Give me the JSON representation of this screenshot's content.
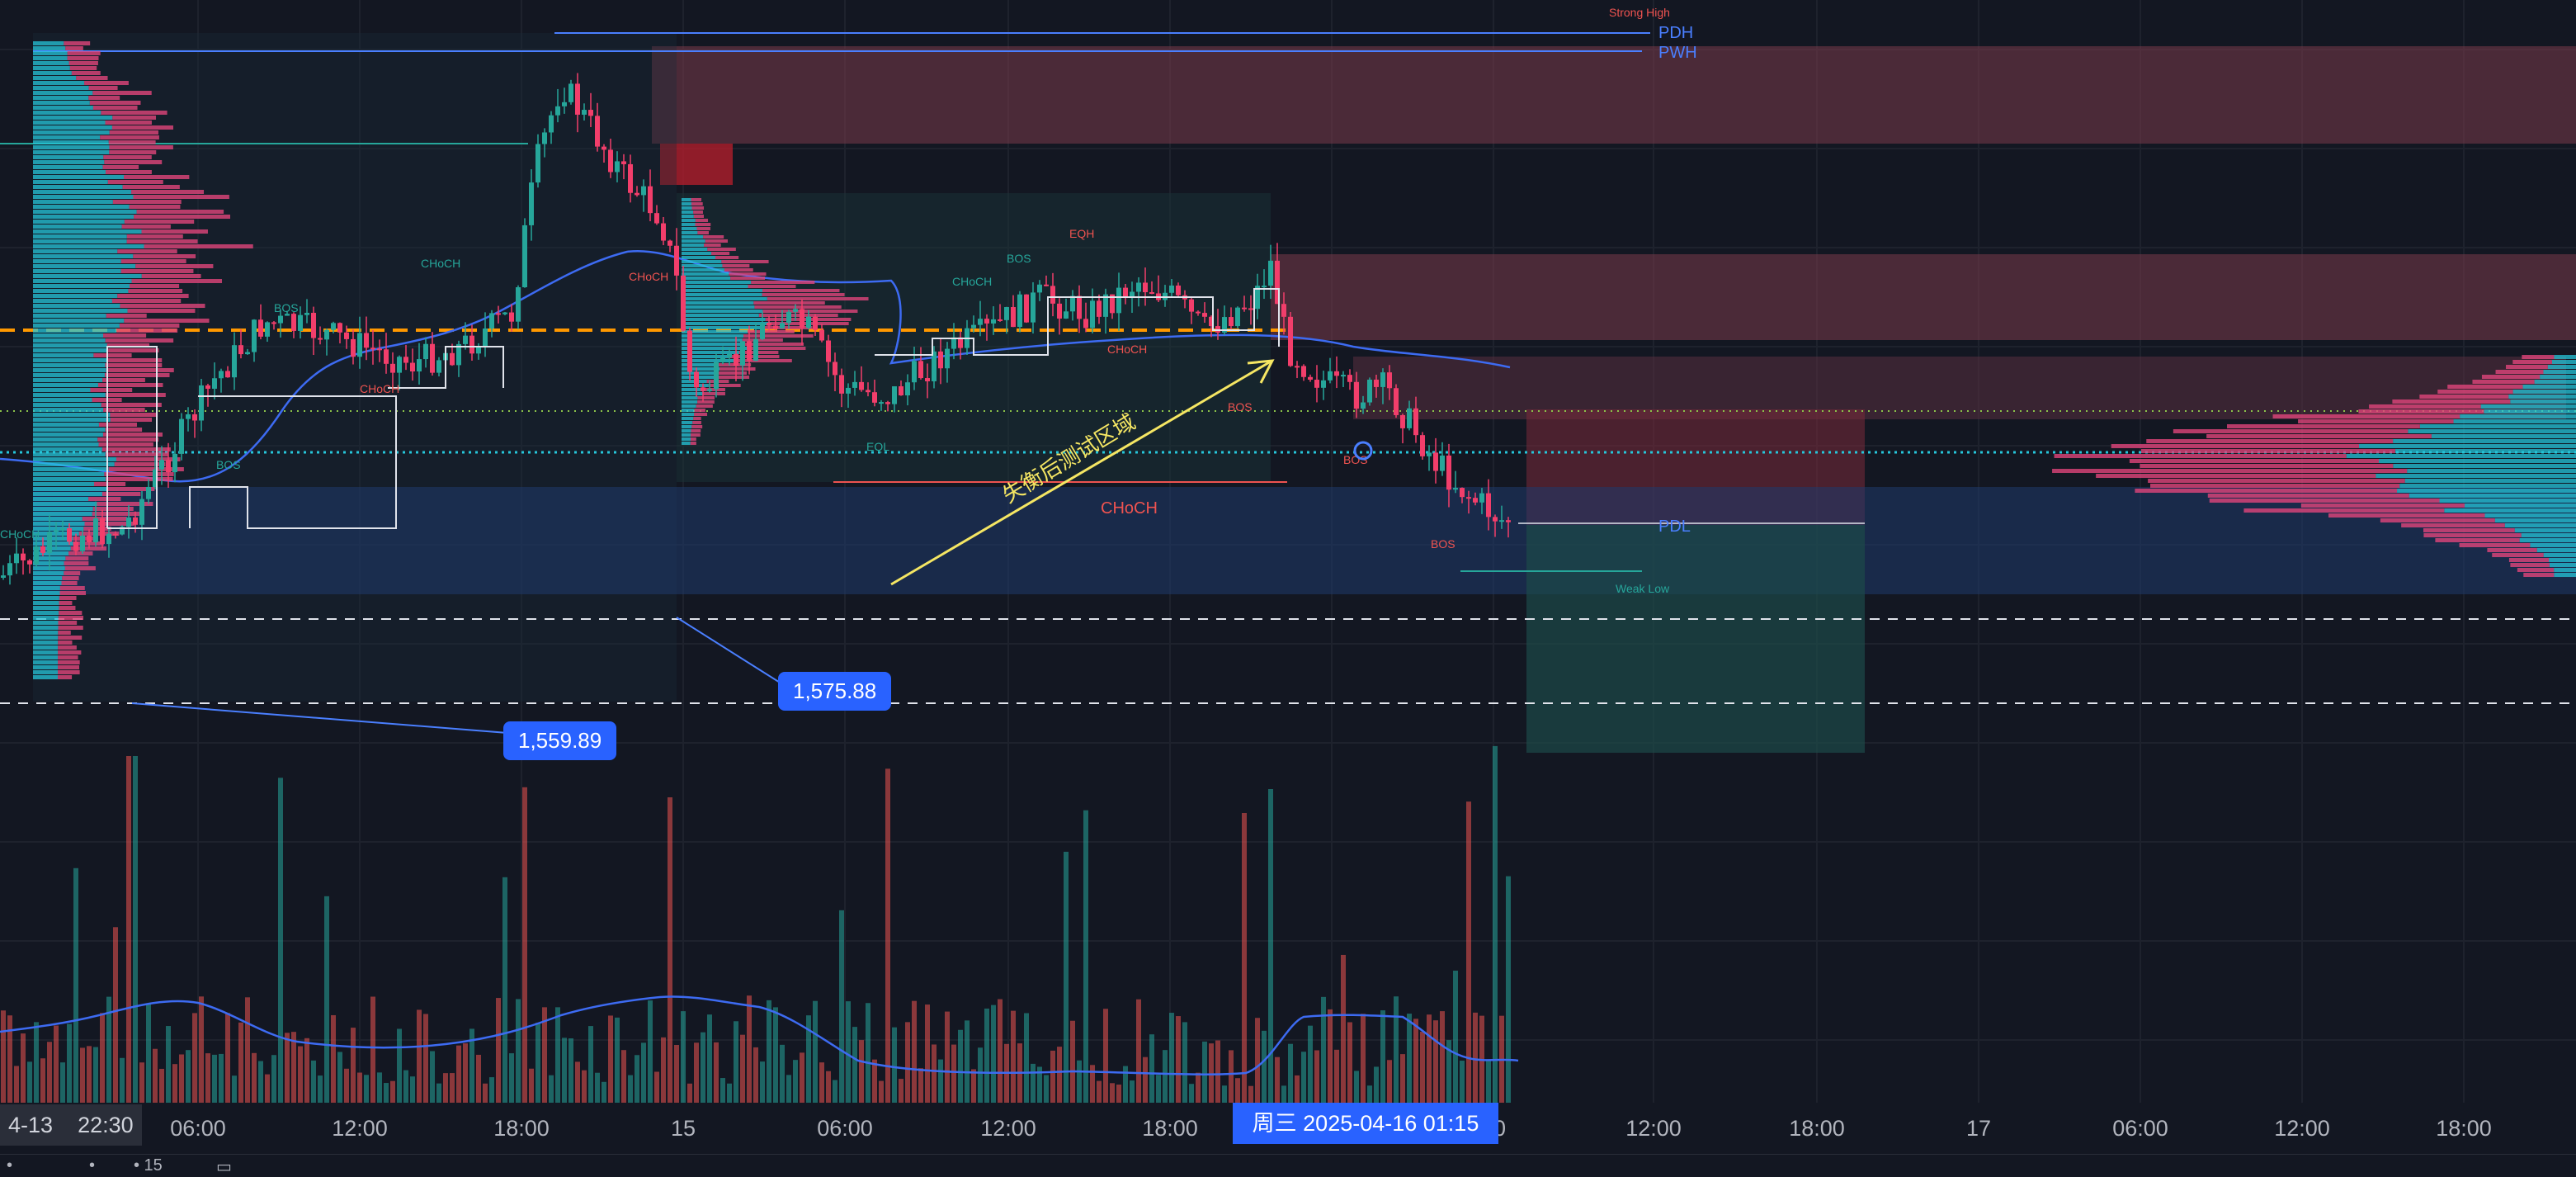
{
  "chart": {
    "labels": {
      "strong_high": "Strong High",
      "pdh": "PDH",
      "pwh": "PWH",
      "pdl": "PDL",
      "weak_low": "Weak Low",
      "eqh": "EQH",
      "eql": "EQL",
      "bos": "BOS",
      "choch": "CHoCH",
      "annotation": "失衡后测试区域"
    },
    "price_tags": {
      "p1": "1,575.88",
      "p2": "1,559.89"
    }
  },
  "time_axis": {
    "first_date": "4-13",
    "first_time": "22:30",
    "ticks": [
      "06:00",
      "12:00",
      "18:00",
      "15",
      "06:00",
      "12:00",
      "18:00",
      "00",
      "12:00",
      "18:00",
      "17",
      "06:00",
      "12:00",
      "18:00"
    ],
    "crosshair": "周三 2025-04-16   01:15"
  },
  "bottom_bar": {
    "items": [
      "•",
      "•",
      "• 15",
      "▭"
    ]
  },
  "colors": {
    "background": "#131722",
    "bull": "#26a69a",
    "bear": "#ef5350",
    "accent": "#2962ff",
    "annotation": "#f5e663"
  }
}
